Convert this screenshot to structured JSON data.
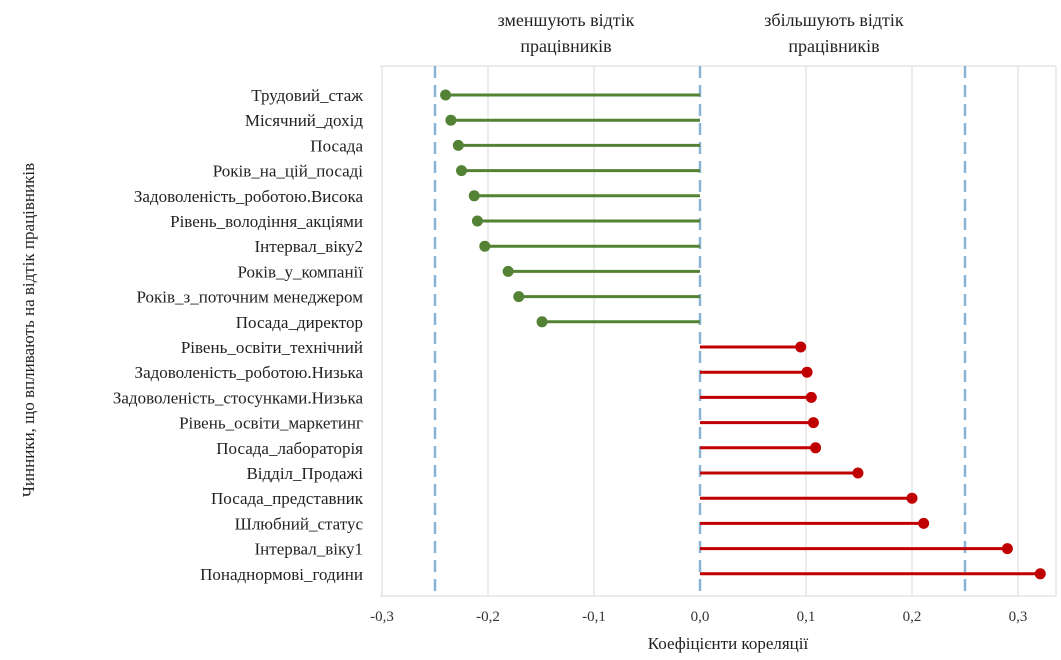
{
  "chart_data": {
    "type": "lollipop",
    "header_left": [
      "зменшують відтік",
      "працівників"
    ],
    "header_right": [
      "збільшують відтік",
      "працівників"
    ],
    "xlabel": "Коефіцієнти кореляції",
    "ylabel": "Чинники, що впливають на відтік працівників",
    "xlim": [
      -0.3,
      0.33
    ],
    "xticks": [
      "-0,3",
      "-0,2",
      "-0,1",
      "0,0",
      "0,1",
      "0,2",
      "0,3"
    ],
    "xtick_values": [
      -0.3,
      -0.2,
      -0.1,
      0.0,
      0.1,
      0.2,
      0.3
    ],
    "reference_lines": [
      -0.25,
      0.0,
      0.25
    ],
    "grid": true,
    "colors": {
      "negative": "#548235",
      "positive": "#C00000",
      "reference": "#8AB4D4",
      "grid": "#D9D9D9"
    },
    "categories": [
      "Трудовий_стаж",
      "Місячний_дохід",
      "Посада",
      "Років_на_цій_посаді",
      "Задоволеність_роботою.Висока",
      "Рівень_володіння_акціями",
      "Інтервал_віку2",
      "Років_у_компанії",
      "Років_з_поточним менеджером",
      "Посада_директор",
      "Рівень_освіти_технічний",
      "Задоволеність_роботою.Низька",
      "Задоволеність_стосунками.Низька",
      "Рівень_освіти_маркетинг",
      "Посада_лабораторія",
      "Відділ_Продажі",
      "Посада_представник",
      "Шлюбний_статус",
      "Інтервал_віку1",
      "Понаднормові_години"
    ],
    "values": [
      -0.24,
      -0.235,
      -0.228,
      -0.225,
      -0.213,
      -0.21,
      -0.203,
      -0.181,
      -0.171,
      -0.149,
      0.095,
      0.101,
      0.105,
      0.107,
      0.109,
      0.149,
      0.2,
      0.211,
      0.29,
      0.321
    ]
  }
}
